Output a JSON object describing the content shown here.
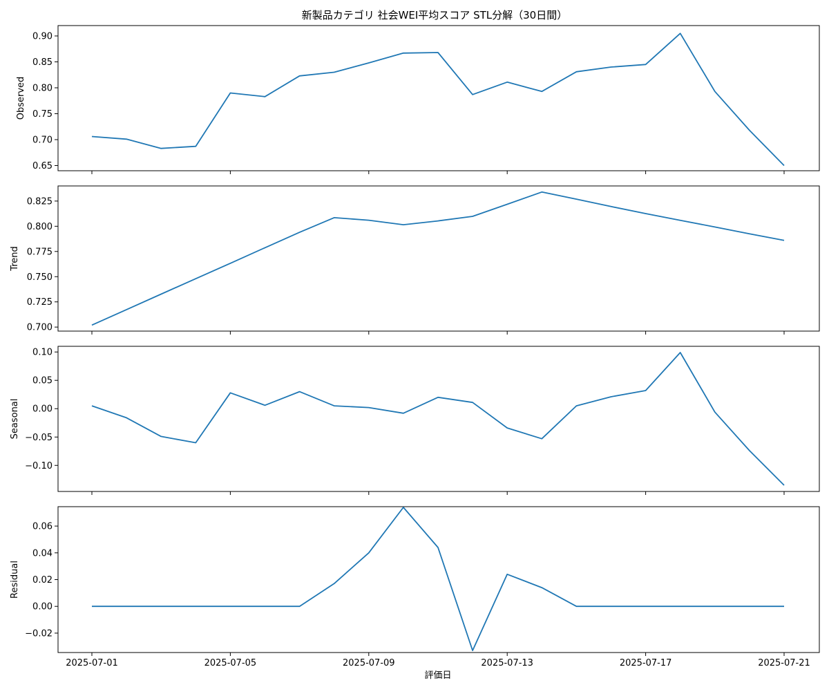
{
  "chart_data": {
    "type": "line",
    "title": "新製品カテゴリ 社会WEI平均スコア STL分解（30日間）",
    "xlabel": "評価日",
    "line_color": "#1f77b4",
    "x": [
      "2025-07-01",
      "2025-07-02",
      "2025-07-03",
      "2025-07-04",
      "2025-07-05",
      "2025-07-06",
      "2025-07-07",
      "2025-07-08",
      "2025-07-09",
      "2025-07-10",
      "2025-07-11",
      "2025-07-12",
      "2025-07-13",
      "2025-07-14",
      "2025-07-15",
      "2025-07-16",
      "2025-07-17",
      "2025-07-18",
      "2025-07-19",
      "2025-07-20",
      "2025-07-21"
    ],
    "x_ticks": [
      "2025-07-01",
      "2025-07-05",
      "2025-07-09",
      "2025-07-13",
      "2025-07-17",
      "2025-07-21"
    ],
    "panels": [
      {
        "name": "observed",
        "ylabel": "Observed",
        "ylim": [
          0.64,
          0.92
        ],
        "yticks": [
          0.65,
          0.7,
          0.75,
          0.8,
          0.85,
          0.9
        ],
        "ytick_labels": [
          "0.65",
          "0.70",
          "0.75",
          "0.80",
          "0.85",
          "0.90"
        ],
        "values": [
          0.706,
          0.701,
          0.683,
          0.687,
          0.79,
          0.783,
          0.823,
          0.83,
          0.848,
          0.867,
          0.868,
          0.787,
          0.811,
          0.793,
          0.831,
          0.84,
          0.845,
          0.905,
          0.793,
          0.718,
          0.65
        ]
      },
      {
        "name": "trend",
        "ylabel": "Trend",
        "ylim": [
          0.696,
          0.84
        ],
        "yticks": [
          0.7,
          0.725,
          0.75,
          0.775,
          0.8,
          0.825
        ],
        "ytick_labels": [
          "0.700",
          "0.725",
          "0.750",
          "0.775",
          "0.800",
          "0.825"
        ],
        "values": [
          0.702,
          0.7173,
          0.7327,
          0.748,
          0.7633,
          0.7787,
          0.794,
          0.8085,
          0.806,
          0.8015,
          0.8053,
          0.8098,
          0.8218,
          0.834,
          0.8269,
          0.8196,
          0.8126,
          0.8059,
          0.7993,
          0.7925,
          0.786
        ]
      },
      {
        "name": "seasonal",
        "ylabel": "Seasonal",
        "ylim": [
          -0.146,
          0.11
        ],
        "yticks": [
          -0.1,
          -0.05,
          0.0,
          0.05,
          0.1
        ],
        "ytick_labels": [
          "−0.10",
          "−0.05",
          "0.00",
          "0.05",
          "0.10"
        ],
        "values": [
          0.005,
          -0.016,
          -0.049,
          -0.06,
          0.028,
          0.006,
          0.03,
          0.005,
          0.002,
          -0.008,
          0.02,
          0.011,
          -0.034,
          -0.053,
          0.005,
          0.021,
          0.032,
          0.099,
          -0.006,
          -0.074,
          -0.135
        ]
      },
      {
        "name": "residual",
        "ylabel": "Residual",
        "ylim": [
          -0.0345,
          0.0745
        ],
        "yticks": [
          -0.02,
          0.0,
          0.02,
          0.04,
          0.06
        ],
        "ytick_labels": [
          "−0.02",
          "0.00",
          "0.02",
          "0.04",
          "0.06"
        ],
        "values": [
          0.0,
          0.0,
          0.0,
          0.0,
          0.0,
          0.0,
          0.0,
          0.017,
          0.04,
          0.074,
          0.044,
          -0.033,
          0.024,
          0.014,
          0.0,
          0.0,
          0.0,
          0.0,
          0.0,
          0.0,
          0.0
        ]
      }
    ]
  }
}
